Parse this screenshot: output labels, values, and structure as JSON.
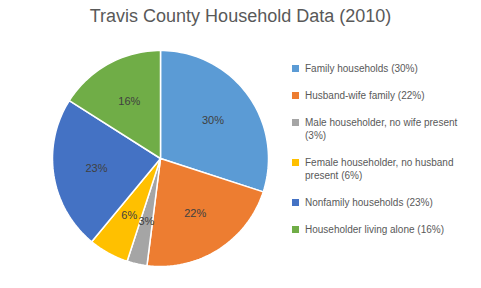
{
  "chart_data": {
    "type": "pie",
    "title": "Travis County Household Data (2010)",
    "categories": [
      "Family households (30%)",
      "Husband-wife family (22%)",
      "Male householder, no wife present (3%)",
      "Female householder, no husband present (6%)",
      "Nonfamily households (23%)",
      "Householder living alone (16%)"
    ],
    "values": [
      30,
      22,
      3,
      6,
      23,
      16
    ],
    "value_labels": [
      "30%",
      "22%",
      "3%",
      "6%",
      "23%",
      "16%"
    ],
    "colors": [
      "#5b9bd5",
      "#ed7d31",
      "#a5a5a5",
      "#ffc000",
      "#4472c4",
      "#70ad47"
    ],
    "data_labels": true,
    "legend": "right"
  }
}
